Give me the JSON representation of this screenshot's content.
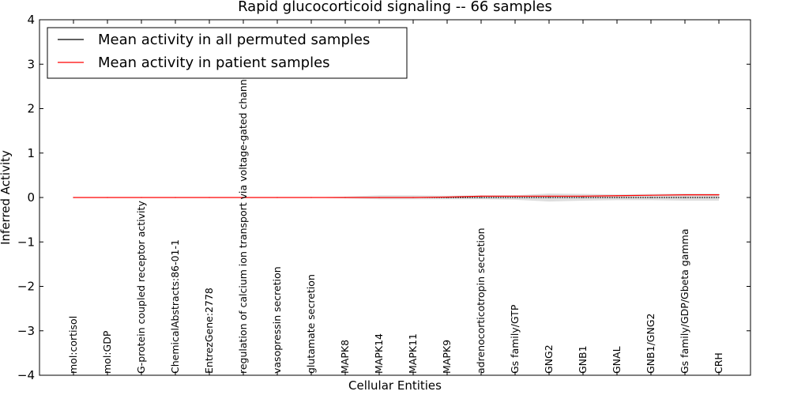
{
  "chart_data": {
    "type": "line",
    "title": "Rapid glucocorticoid signaling -- 66 samples",
    "xlabel": "Cellular Entities",
    "ylabel": "Inferred Activity",
    "ylim": [
      -4,
      4
    ],
    "yticks": [
      "4",
      "3",
      "2",
      "1",
      "0",
      "−1",
      "−2",
      "−3",
      "−4"
    ],
    "ytick_values": [
      4,
      3,
      2,
      1,
      0,
      -1,
      -2,
      -3,
      -4
    ],
    "categories": [
      "mol:cortisol",
      "mol:GDP",
      "G-protein coupled receptor activity",
      "ChemicalAbstracts:86-01-1",
      "EntrezGene:2778",
      "regulation of calcium ion transport via voltage-gated channel",
      "vasopressin secretion",
      "glutamate secretion",
      "MAPK8",
      "MAPK14",
      "MAPK11",
      "MAPK9",
      "adrenocorticotropin secretion",
      "Gs family/GTP",
      "GNG2",
      "GNB1",
      "GNAL",
      "GNB1/GNG2",
      "Gs family/GDP/Gbeta gamma",
      "CRH"
    ],
    "series": [
      {
        "name": "Mean activity in all permuted samples",
        "color": "#000000",
        "values": [
          0,
          0,
          0,
          0,
          0,
          0,
          0,
          0,
          0,
          0,
          0,
          0,
          0,
          0.0,
          0.0,
          0.0,
          0.0,
          0.0,
          0.0,
          0.0
        ]
      },
      {
        "name": "Mean activity in patient samples",
        "color": "#ff0000",
        "values": [
          0,
          0,
          0,
          0,
          0,
          0,
          0,
          0,
          0,
          0,
          0,
          0.01,
          0.03,
          0.03,
          0.03,
          0.03,
          0.04,
          0.05,
          0.06,
          0.06
        ]
      }
    ],
    "band": {
      "color": "#c8c8c8",
      "upper": [
        0,
        0,
        0,
        0,
        0,
        0,
        0,
        0,
        0.02,
        0.05,
        0.05,
        0.04,
        0.05,
        0.05,
        0.09,
        0.08,
        0.07,
        0.08,
        0.09,
        0.09
      ],
      "lower": [
        0,
        0,
        0,
        0,
        0,
        0,
        0,
        0,
        -0.02,
        -0.04,
        -0.04,
        -0.04,
        -0.04,
        -0.05,
        -0.09,
        -0.07,
        -0.06,
        -0.06,
        -0.07,
        -0.07
      ]
    },
    "legend": {
      "position": "top-left",
      "entries": [
        "Mean activity in all permuted samples",
        "Mean activity in patient samples"
      ]
    },
    "grid": false
  }
}
